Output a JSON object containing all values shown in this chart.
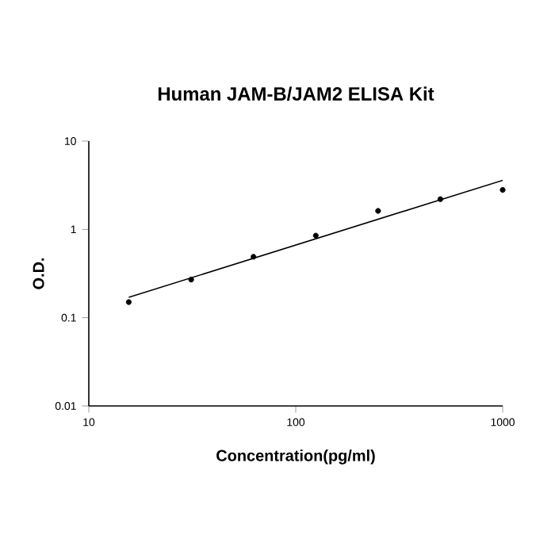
{
  "chart_data": {
    "type": "scatter",
    "title": "Human JAM-B/JAM2 ELISA Kit",
    "xlabel": "Concentration(pg/ml)",
    "ylabel": "O.D.",
    "log": "xy",
    "grid": false,
    "xlim": [
      10,
      1000
    ],
    "xticks": [
      10,
      100,
      1000
    ],
    "ylim": [
      0.01,
      10
    ],
    "yticks": [
      0.01,
      0.1,
      1,
      10
    ],
    "series": [
      {
        "color": "#000000",
        "marker": "circle",
        "x": [
          15.6,
          31.25,
          62.5,
          125,
          250,
          500,
          1000
        ],
        "values": [
          0.15,
          0.27,
          0.49,
          0.85,
          1.62,
          2.2,
          2.8
        ]
      },
      {
        "type": "line",
        "marker": "none",
        "color": "#000000",
        "x": [
          15.6,
          1000
        ],
        "values": [
          0.17,
          3.6
        ]
      }
    ]
  }
}
